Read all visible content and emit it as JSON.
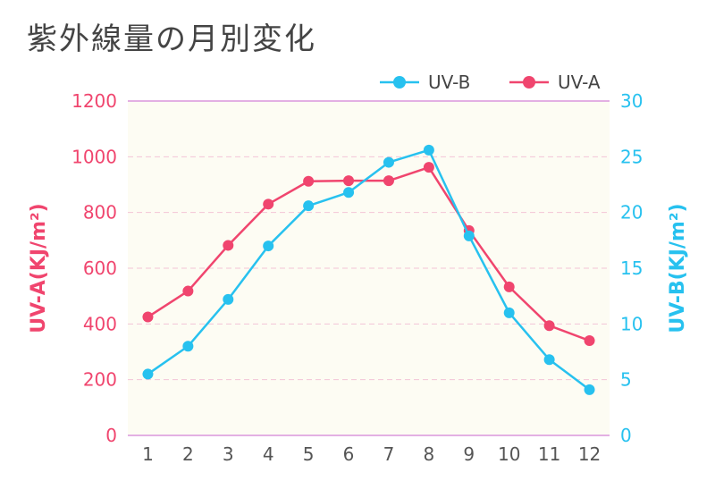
{
  "title": "紫外線量の月別変化",
  "chart_data": {
    "type": "line",
    "categories": [
      "1",
      "2",
      "3",
      "4",
      "5",
      "6",
      "7",
      "8",
      "9",
      "10",
      "11",
      "12"
    ],
    "series": [
      {
        "name": "UV-A",
        "axis": "left",
        "color": "#f0456e",
        "values": [
          425,
          518,
          682,
          830,
          912,
          914,
          914,
          962,
          735,
          533,
          394,
          340
        ]
      },
      {
        "name": "UV-B",
        "axis": "right",
        "color": "#27c1ef",
        "values": [
          5.5,
          8.0,
          12.2,
          17.0,
          20.6,
          21.8,
          24.5,
          25.6,
          17.9,
          11.0,
          6.8,
          4.1
        ]
      }
    ],
    "y_left": {
      "label": "UV-A(KJ/m²)",
      "min": 0,
      "max": 1200,
      "ticks": [
        0,
        200,
        400,
        600,
        800,
        1000,
        1200
      ]
    },
    "y_right": {
      "label": "UV-B(KJ/m²)",
      "min": 0,
      "max": 30,
      "ticks": [
        0,
        5,
        10,
        15,
        20,
        25,
        30
      ]
    },
    "legend_order": [
      "UV-B",
      "UV-A"
    ],
    "legend_position": "top-right",
    "grid": true,
    "colors": {
      "plot_bg": "#fdfcf3",
      "grid": "#f3c4d6",
      "axis_line": "#e3b0e3",
      "left_axis": "#f0456e",
      "right_axis": "#27c1ef",
      "x_tick": "#555555"
    }
  }
}
